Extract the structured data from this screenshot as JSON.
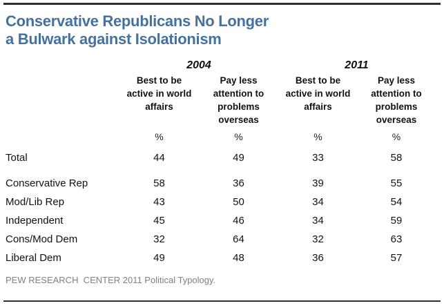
{
  "page": {
    "accent_color": "#44719e",
    "border_color": "#2e2e2e",
    "footer_color": "#808080",
    "title_line1": "Conservative Republicans No Longer",
    "title_line2": "a Bulwark against Isolationism"
  },
  "chart_data": {
    "type": "table",
    "title": "Conservative Republicans No Longer a Bulwark against Isolationism",
    "year_groups": [
      "2004",
      "2011"
    ],
    "column_headers": [
      "Best to be active in world affairs",
      "Pay less attention to problems overseas",
      "Best to be active in world affairs",
      "Pay less attention to problems overseas"
    ],
    "unit_row": [
      "%",
      "%",
      "%",
      "%"
    ],
    "rows": [
      {
        "label": "Total",
        "values": [
          44,
          49,
          33,
          58
        ]
      },
      {
        "label": "Conservative Rep",
        "values": [
          58,
          36,
          39,
          55
        ]
      },
      {
        "label": "Mod/Lib Rep",
        "values": [
          43,
          50,
          34,
          54
        ]
      },
      {
        "label": "Independent",
        "values": [
          45,
          46,
          34,
          59
        ]
      },
      {
        "label": "Cons/Mod Dem",
        "values": [
          32,
          64,
          32,
          63
        ]
      },
      {
        "label": "Liberal Dem",
        "values": [
          49,
          48,
          36,
          57
        ]
      }
    ],
    "source": "PEW RESEARCH  CENTER 2011 Political Typology."
  }
}
